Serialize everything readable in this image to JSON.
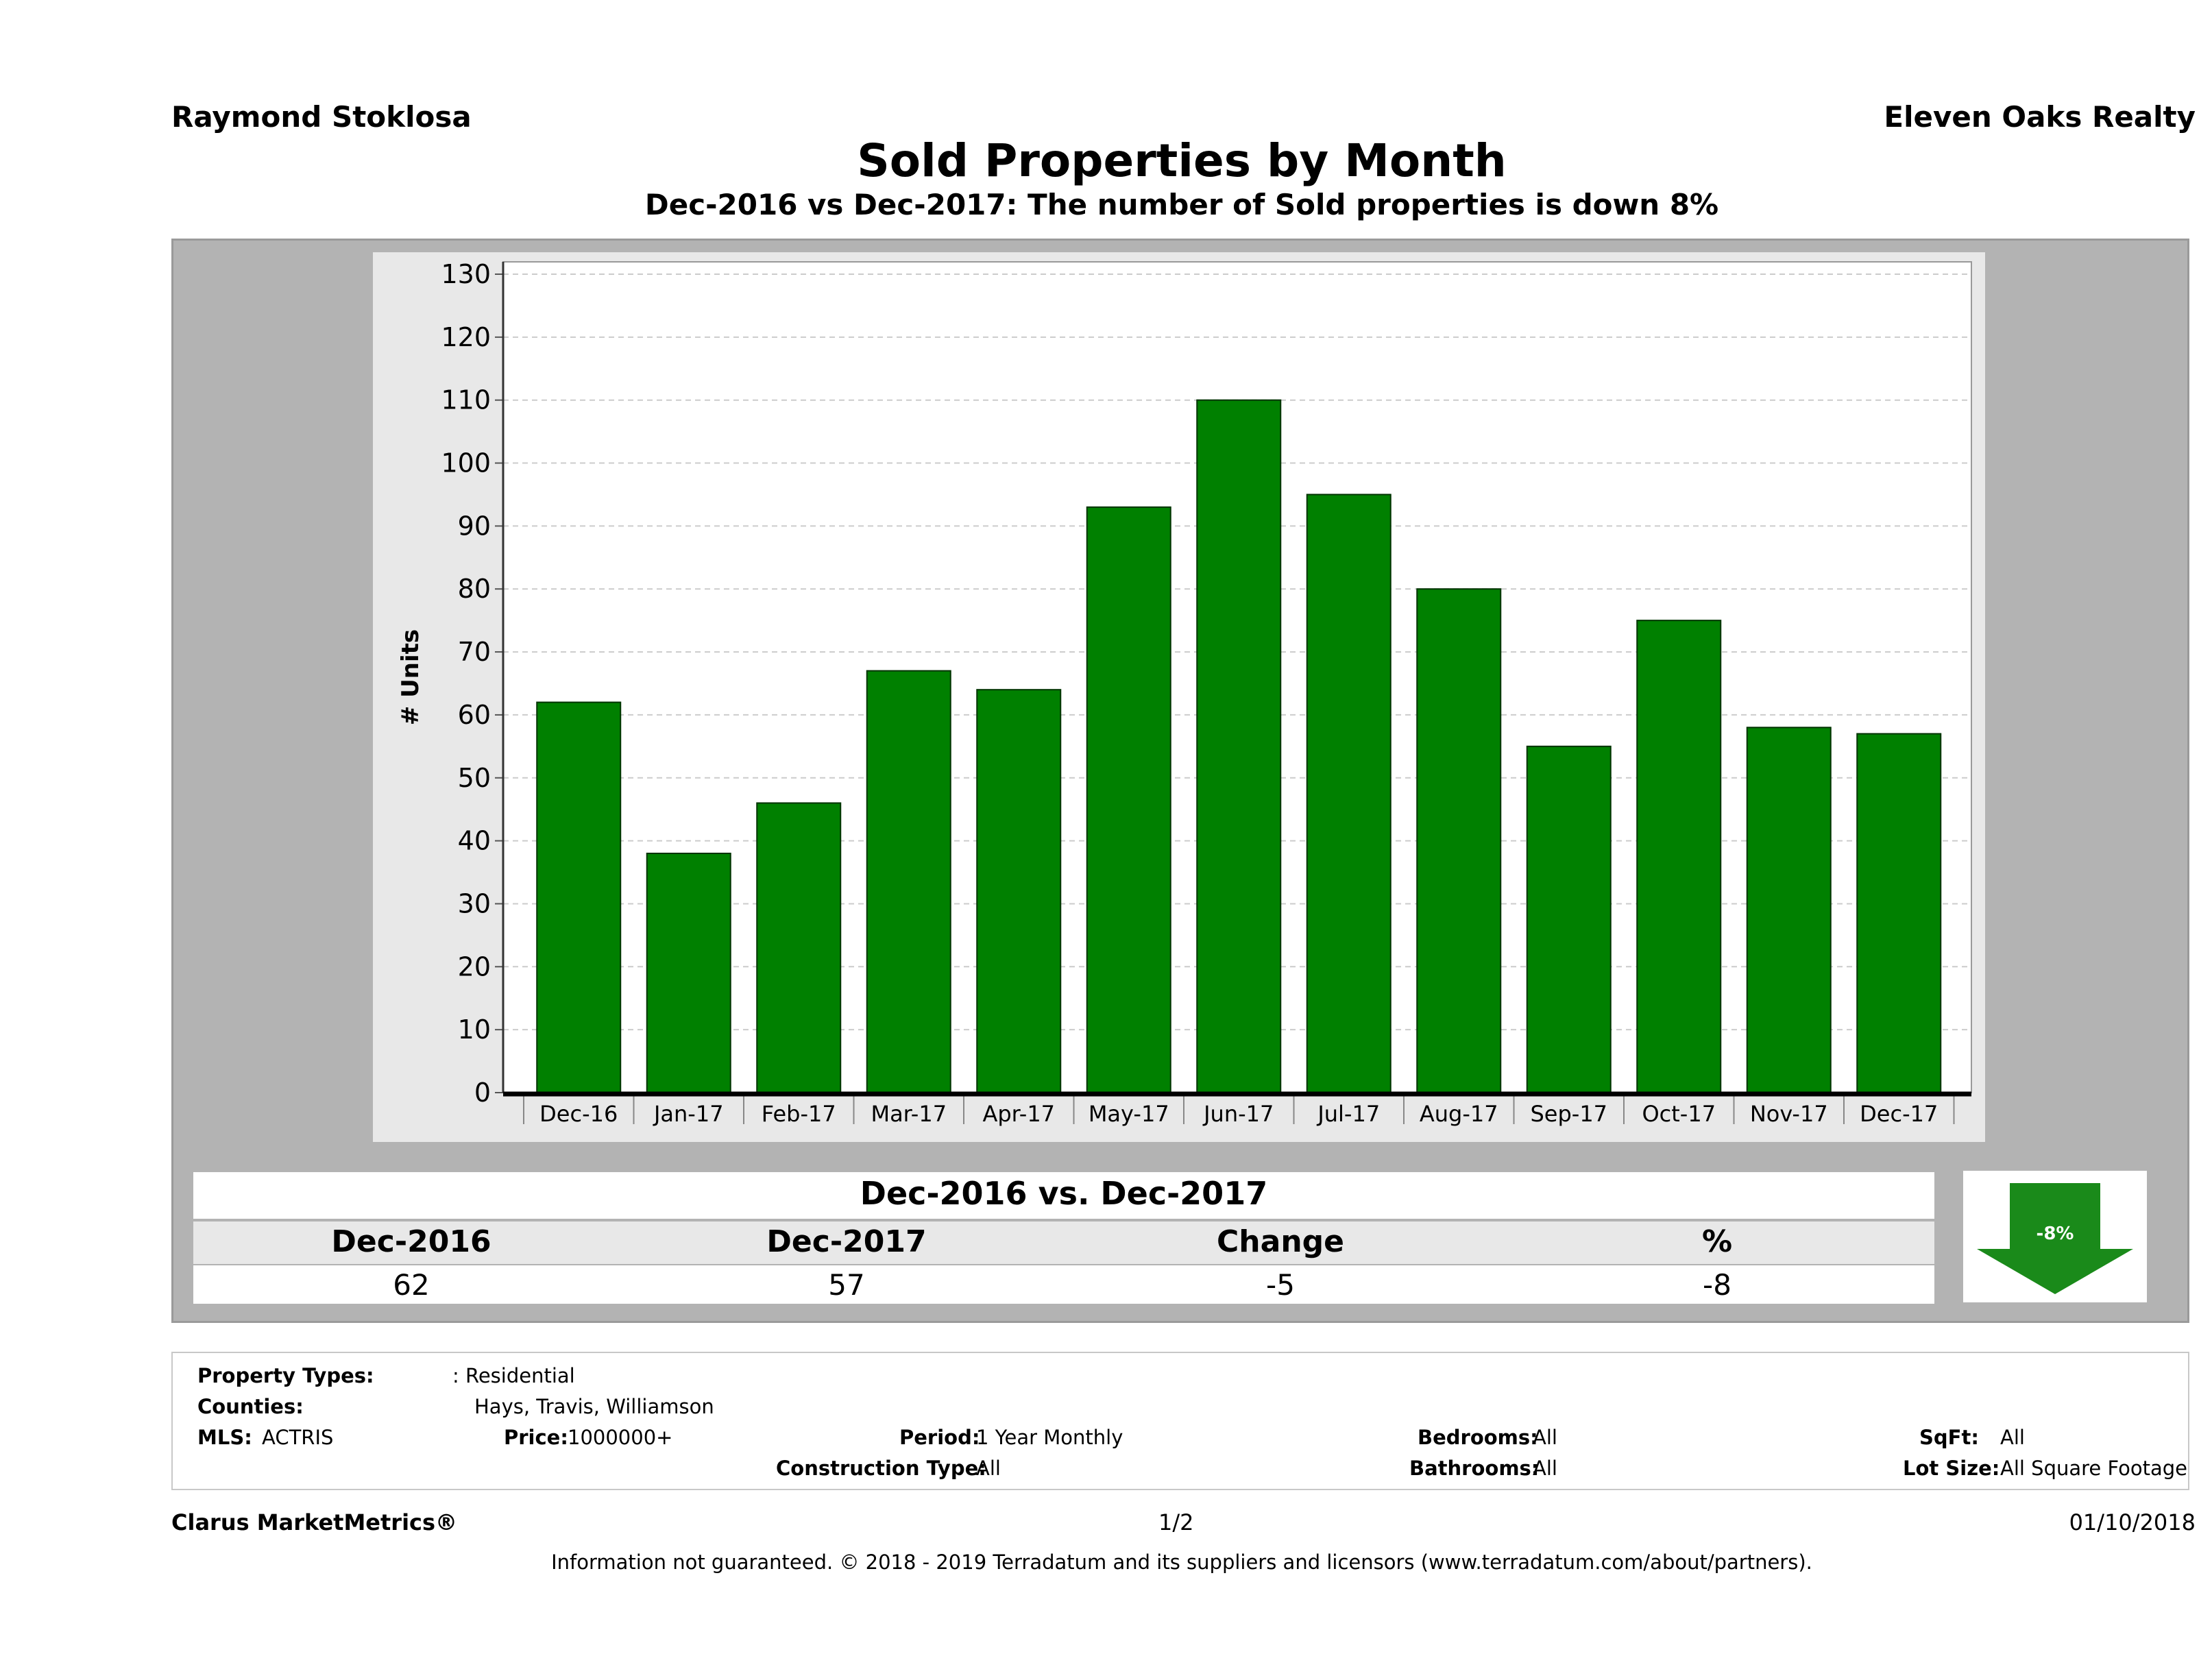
{
  "header": {
    "agent": "Raymond Stoklosa",
    "company": "Eleven Oaks Realty",
    "title": "Sold Properties by Month",
    "subtitle": "Dec-2016 vs Dec-2017: The number of Sold  properties is down 8%"
  },
  "chart_data": {
    "type": "bar",
    "ylabel": "# Units",
    "ylim": [
      0,
      130
    ],
    "yticks": [
      0,
      10,
      20,
      30,
      40,
      50,
      60,
      70,
      80,
      90,
      100,
      110,
      120,
      130
    ],
    "categories": [
      "Dec-16",
      "Jan-17",
      "Feb-17",
      "Mar-17",
      "Apr-17",
      "May-17",
      "Jun-17",
      "Jul-17",
      "Aug-17",
      "Sep-17",
      "Oct-17",
      "Nov-17",
      "Dec-17"
    ],
    "values": [
      62,
      38,
      46,
      67,
      64,
      93,
      110,
      95,
      80,
      55,
      75,
      58,
      57
    ],
    "bar_color": "#008000",
    "grid": true
  },
  "summary": {
    "title": "Dec-2016 vs. Dec-2017",
    "headers": [
      "Dec-2016",
      "Dec-2017",
      "Change",
      "%"
    ],
    "values": [
      "62",
      "57",
      "-5",
      "-8"
    ],
    "badge": "-8%",
    "badge_icon": "down-arrow-icon",
    "badge_color": "#1a8a1a"
  },
  "filters": {
    "property_types_label": "Property Types:",
    "property_types_value": ": Residential",
    "counties_label": "Counties:",
    "counties_value": "Hays, Travis, Williamson",
    "mls_label": "MLS:",
    "mls_value": "ACTRIS",
    "price_label": "Price:",
    "price_value": "1000000+",
    "period_label": "Period:",
    "period_value": "1 Year Monthly",
    "construction_label": "Construction Type:",
    "construction_value": "All",
    "bedrooms_label": "Bedrooms:",
    "bedrooms_value": "All",
    "bathrooms_label": "Bathrooms:",
    "bathrooms_value": "All",
    "sqft_label": "SqFt:",
    "sqft_value": "All",
    "lotsize_label": "Lot Size:",
    "lotsize_value": "All Square Footage"
  },
  "footer": {
    "brand": "Clarus MarketMetrics®",
    "page": "1/2",
    "date": "01/10/2018",
    "disclaimer": "Information not guaranteed. © 2018 - 2019 Terradatum and its suppliers and licensors (www.terradatum.com/about/partners)."
  }
}
